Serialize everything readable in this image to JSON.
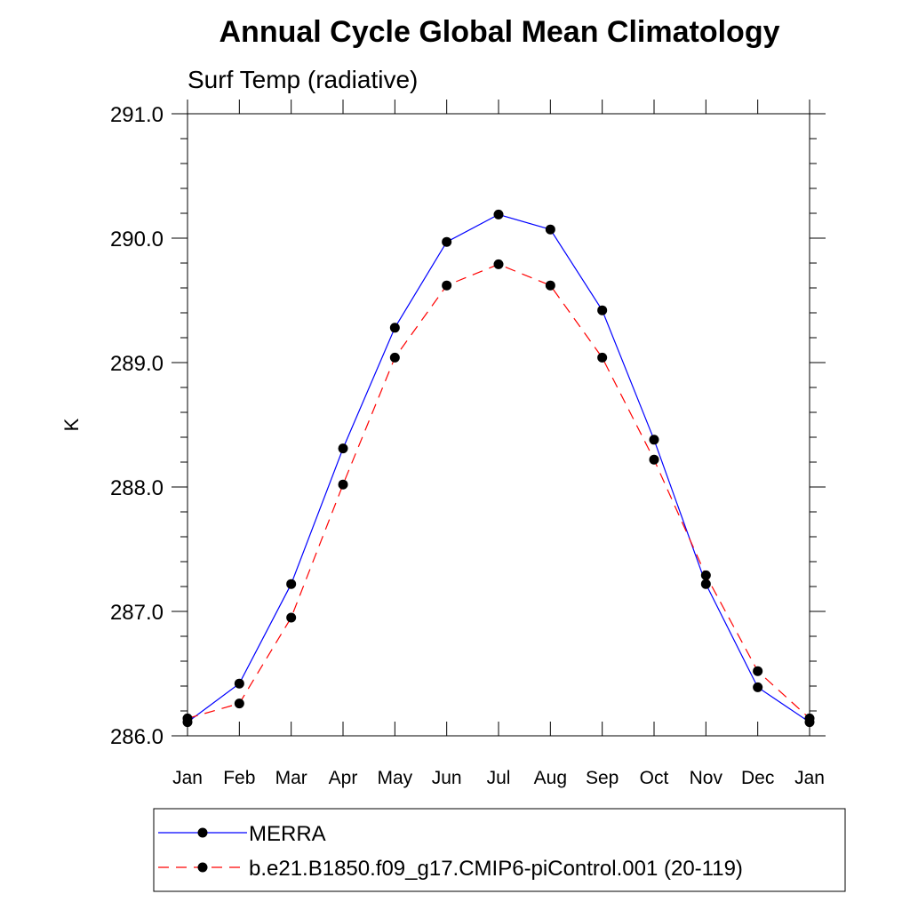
{
  "chart_data": {
    "type": "line",
    "title": "Annual Cycle Global Mean Climatology",
    "subtitle": "Surf Temp (radiative)",
    "xlabel": "",
    "ylabel": "K",
    "categories": [
      "Jan",
      "Feb",
      "Mar",
      "Apr",
      "May",
      "Jun",
      "Jul",
      "Aug",
      "Sep",
      "Oct",
      "Nov",
      "Dec",
      "Jan"
    ],
    "ylim": [
      286.0,
      291.0
    ],
    "yticks": [
      "286.0",
      "287.0",
      "288.0",
      "289.0",
      "290.0",
      "291.0"
    ],
    "legend_position": "bottom",
    "grid": false,
    "series": [
      {
        "name": "MERRA",
        "color": "#0000ff",
        "line_style": "solid",
        "marker": "filled-circle",
        "values": [
          286.11,
          286.42,
          287.22,
          288.31,
          289.28,
          289.97,
          290.19,
          290.07,
          289.42,
          288.38,
          287.22,
          286.39,
          286.11
        ]
      },
      {
        "name": "b.e21.B1850.f09_g17.CMIP6-piControl.001 (20-119)",
        "color": "#ff0000",
        "line_style": "dashed",
        "marker": "filled-circle",
        "values": [
          286.14,
          286.26,
          286.95,
          288.02,
          289.04,
          289.62,
          289.79,
          289.62,
          289.04,
          288.22,
          287.29,
          286.52,
          286.14
        ]
      }
    ]
  }
}
